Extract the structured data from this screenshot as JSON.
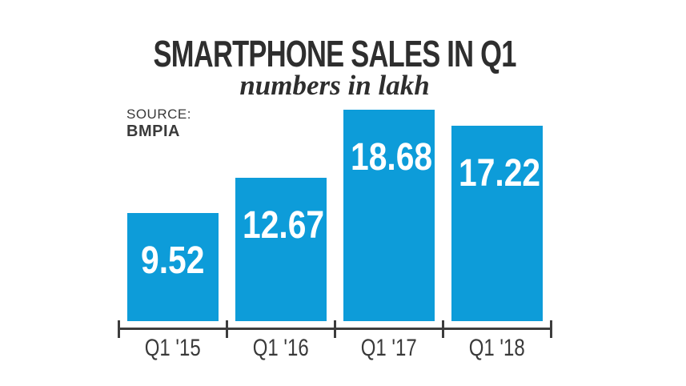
{
  "header": {
    "title": "SMARTPHONE SALES IN Q1",
    "subtitle": "numbers in lakh",
    "source_label": "SOURCE:",
    "source_value": "BMPIA"
  },
  "colors": {
    "bar": "#0d9cd9",
    "title_text": "#2e2e2e",
    "axis": "#3d3d3d",
    "label_text": "#3a3a3a",
    "value_text": "#ffffff",
    "background": "#ffffff"
  },
  "chart_data": {
    "type": "bar",
    "title": "SMARTPHONE SALES IN Q1",
    "subtitle": "numbers in lakh",
    "source": "BMPIA",
    "categories": [
      "Q1 '15",
      "Q1 '16",
      "Q1 '17",
      "Q1 '18"
    ],
    "values": [
      9.52,
      12.67,
      18.68,
      17.22
    ],
    "value_labels": [
      "9.52",
      "12.67",
      "18.68",
      "17.22"
    ],
    "xlabel": "",
    "ylabel": "",
    "ylim": [
      0,
      19
    ],
    "grid": false,
    "legend": false,
    "bar_color": "#0d9cd9"
  }
}
